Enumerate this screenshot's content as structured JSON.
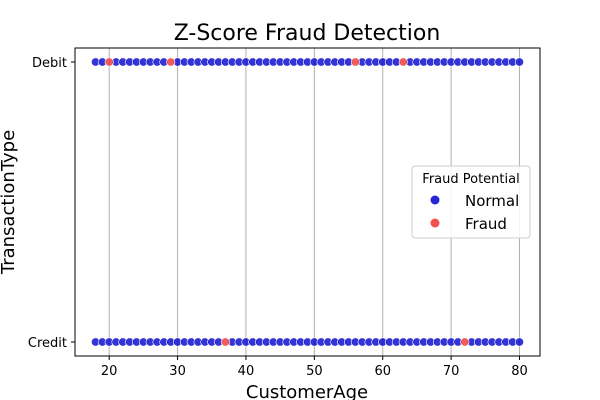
{
  "chart_data": {
    "type": "scatter",
    "title": "Z-Score Fraud Detection",
    "xlabel": "CustomerAge",
    "ylabel": "TransactionType",
    "xlim": [
      15,
      83
    ],
    "x_ticks": [
      20,
      30,
      40,
      50,
      60,
      70,
      80
    ],
    "y_categories": [
      "Credit",
      "Debit"
    ],
    "grid": "x",
    "legend": {
      "title": "Fraud Potential",
      "placement": "center-right",
      "entries": [
        {
          "label": "Normal",
          "color": "#0000cc"
        },
        {
          "label": "Fraud",
          "color": "#ee3333"
        }
      ]
    },
    "series": [
      {
        "name": "Normal",
        "color": "#0000cc",
        "points": [
          {
            "x": 18,
            "y": "Debit"
          },
          {
            "x": 19,
            "y": "Debit"
          },
          {
            "x": 21,
            "y": "Debit"
          },
          {
            "x": 22,
            "y": "Debit"
          },
          {
            "x": 23,
            "y": "Debit"
          },
          {
            "x": 24,
            "y": "Debit"
          },
          {
            "x": 25,
            "y": "Debit"
          },
          {
            "x": 26,
            "y": "Debit"
          },
          {
            "x": 27,
            "y": "Debit"
          },
          {
            "x": 28,
            "y": "Debit"
          },
          {
            "x": 30,
            "y": "Debit"
          },
          {
            "x": 31,
            "y": "Debit"
          },
          {
            "x": 32,
            "y": "Debit"
          },
          {
            "x": 33,
            "y": "Debit"
          },
          {
            "x": 34,
            "y": "Debit"
          },
          {
            "x": 35,
            "y": "Debit"
          },
          {
            "x": 36,
            "y": "Debit"
          },
          {
            "x": 37,
            "y": "Debit"
          },
          {
            "x": 38,
            "y": "Debit"
          },
          {
            "x": 39,
            "y": "Debit"
          },
          {
            "x": 40,
            "y": "Debit"
          },
          {
            "x": 41,
            "y": "Debit"
          },
          {
            "x": 42,
            "y": "Debit"
          },
          {
            "x": 43,
            "y": "Debit"
          },
          {
            "x": 44,
            "y": "Debit"
          },
          {
            "x": 45,
            "y": "Debit"
          },
          {
            "x": 46,
            "y": "Debit"
          },
          {
            "x": 47,
            "y": "Debit"
          },
          {
            "x": 48,
            "y": "Debit"
          },
          {
            "x": 49,
            "y": "Debit"
          },
          {
            "x": 50,
            "y": "Debit"
          },
          {
            "x": 51,
            "y": "Debit"
          },
          {
            "x": 52,
            "y": "Debit"
          },
          {
            "x": 53,
            "y": "Debit"
          },
          {
            "x": 54,
            "y": "Debit"
          },
          {
            "x": 55,
            "y": "Debit"
          },
          {
            "x": 57,
            "y": "Debit"
          },
          {
            "x": 58,
            "y": "Debit"
          },
          {
            "x": 59,
            "y": "Debit"
          },
          {
            "x": 60,
            "y": "Debit"
          },
          {
            "x": 61,
            "y": "Debit"
          },
          {
            "x": 62,
            "y": "Debit"
          },
          {
            "x": 64,
            "y": "Debit"
          },
          {
            "x": 65,
            "y": "Debit"
          },
          {
            "x": 66,
            "y": "Debit"
          },
          {
            "x": 67,
            "y": "Debit"
          },
          {
            "x": 68,
            "y": "Debit"
          },
          {
            "x": 69,
            "y": "Debit"
          },
          {
            "x": 70,
            "y": "Debit"
          },
          {
            "x": 71,
            "y": "Debit"
          },
          {
            "x": 72,
            "y": "Debit"
          },
          {
            "x": 73,
            "y": "Debit"
          },
          {
            "x": 74,
            "y": "Debit"
          },
          {
            "x": 75,
            "y": "Debit"
          },
          {
            "x": 76,
            "y": "Debit"
          },
          {
            "x": 77,
            "y": "Debit"
          },
          {
            "x": 78,
            "y": "Debit"
          },
          {
            "x": 79,
            "y": "Debit"
          },
          {
            "x": 80,
            "y": "Debit"
          },
          {
            "x": 18,
            "y": "Credit"
          },
          {
            "x": 19,
            "y": "Credit"
          },
          {
            "x": 20,
            "y": "Credit"
          },
          {
            "x": 21,
            "y": "Credit"
          },
          {
            "x": 22,
            "y": "Credit"
          },
          {
            "x": 23,
            "y": "Credit"
          },
          {
            "x": 24,
            "y": "Credit"
          },
          {
            "x": 25,
            "y": "Credit"
          },
          {
            "x": 26,
            "y": "Credit"
          },
          {
            "x": 27,
            "y": "Credit"
          },
          {
            "x": 28,
            "y": "Credit"
          },
          {
            "x": 29,
            "y": "Credit"
          },
          {
            "x": 30,
            "y": "Credit"
          },
          {
            "x": 31,
            "y": "Credit"
          },
          {
            "x": 32,
            "y": "Credit"
          },
          {
            "x": 33,
            "y": "Credit"
          },
          {
            "x": 34,
            "y": "Credit"
          },
          {
            "x": 35,
            "y": "Credit"
          },
          {
            "x": 36,
            "y": "Credit"
          },
          {
            "x": 38,
            "y": "Credit"
          },
          {
            "x": 39,
            "y": "Credit"
          },
          {
            "x": 40,
            "y": "Credit"
          },
          {
            "x": 41,
            "y": "Credit"
          },
          {
            "x": 42,
            "y": "Credit"
          },
          {
            "x": 43,
            "y": "Credit"
          },
          {
            "x": 44,
            "y": "Credit"
          },
          {
            "x": 45,
            "y": "Credit"
          },
          {
            "x": 46,
            "y": "Credit"
          },
          {
            "x": 47,
            "y": "Credit"
          },
          {
            "x": 48,
            "y": "Credit"
          },
          {
            "x": 49,
            "y": "Credit"
          },
          {
            "x": 50,
            "y": "Credit"
          },
          {
            "x": 51,
            "y": "Credit"
          },
          {
            "x": 52,
            "y": "Credit"
          },
          {
            "x": 53,
            "y": "Credit"
          },
          {
            "x": 54,
            "y": "Credit"
          },
          {
            "x": 55,
            "y": "Credit"
          },
          {
            "x": 56,
            "y": "Credit"
          },
          {
            "x": 57,
            "y": "Credit"
          },
          {
            "x": 58,
            "y": "Credit"
          },
          {
            "x": 59,
            "y": "Credit"
          },
          {
            "x": 60,
            "y": "Credit"
          },
          {
            "x": 61,
            "y": "Credit"
          },
          {
            "x": 62,
            "y": "Credit"
          },
          {
            "x": 63,
            "y": "Credit"
          },
          {
            "x": 64,
            "y": "Credit"
          },
          {
            "x": 65,
            "y": "Credit"
          },
          {
            "x": 66,
            "y": "Credit"
          },
          {
            "x": 67,
            "y": "Credit"
          },
          {
            "x": 68,
            "y": "Credit"
          },
          {
            "x": 69,
            "y": "Credit"
          },
          {
            "x": 70,
            "y": "Credit"
          },
          {
            "x": 71,
            "y": "Credit"
          },
          {
            "x": 73,
            "y": "Credit"
          },
          {
            "x": 74,
            "y": "Credit"
          },
          {
            "x": 75,
            "y": "Credit"
          },
          {
            "x": 76,
            "y": "Credit"
          },
          {
            "x": 77,
            "y": "Credit"
          },
          {
            "x": 78,
            "y": "Credit"
          },
          {
            "x": 79,
            "y": "Credit"
          },
          {
            "x": 80,
            "y": "Credit"
          }
        ]
      },
      {
        "name": "Fraud",
        "color": "#ee3333",
        "points": [
          {
            "x": 20,
            "y": "Debit"
          },
          {
            "x": 29,
            "y": "Debit"
          },
          {
            "x": 56,
            "y": "Debit"
          },
          {
            "x": 63,
            "y": "Debit"
          },
          {
            "x": 37,
            "y": "Credit"
          },
          {
            "x": 72,
            "y": "Credit"
          }
        ]
      }
    ]
  }
}
